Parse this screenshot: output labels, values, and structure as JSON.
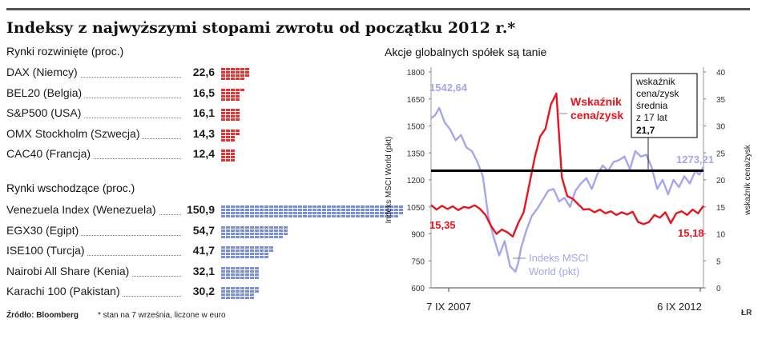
{
  "title": "Indeksy z najwyższymi stopami zwrotu od początku 2012 r.*",
  "developed": {
    "heading": "Rynki rozwinięte (proc.)",
    "color": "#e8302e",
    "rows": [
      {
        "label": "DAX (Niemcy)",
        "value": "22,6",
        "num": 22.6
      },
      {
        "label": "BEL20 (Belgia)",
        "value": "16,5",
        "num": 16.5
      },
      {
        "label": "S&P500 (USA)",
        "value": "16,1",
        "num": 16.1
      },
      {
        "label": "OMX Stockholm (Szwecja)",
        "value": "14,3",
        "num": 14.3
      },
      {
        "label": "CAC40 (Francja)",
        "value": "12,4",
        "num": 12.4
      }
    ]
  },
  "emerging": {
    "heading": "Rynki wschodzące (proc.)",
    "color": "#7a8fd6",
    "rows": [
      {
        "label": "Venezuela Index (Wenezuela)",
        "value": "150,9",
        "num": 150.9
      },
      {
        "label": "EGX30 (Egipt)",
        "value": "54,7",
        "num": 54.7
      },
      {
        "label": "ISE100 (Turcja)",
        "value": "41,7",
        "num": 41.7
      },
      {
        "label": "Nairobi All Share (Kenia)",
        "value": "32,1",
        "num": 32.1
      },
      {
        "label": "Karachi 100 (Pakistan)",
        "value": "30,2",
        "num": 30.2
      }
    ]
  },
  "footer": {
    "source": "Źródło: Bloomberg",
    "note": "* stan na 7 września, liczone w euro",
    "logo": "ŁR"
  },
  "chart_data": {
    "type": "line",
    "title": "Akcje globalnych spółek są tanie",
    "x_labels": [
      "7 IX 2007",
      "6 IX 2012"
    ],
    "y_left": {
      "label": "Indeks MSCI World (pkt)",
      "range": [
        600,
        1800
      ],
      "ticks": [
        "600",
        "750",
        "900",
        "1050",
        "1200",
        "1350",
        "1500",
        "1650",
        "1800"
      ]
    },
    "y_right": {
      "label": "wskaźnik cena/zysk",
      "range": [
        0,
        40
      ],
      "ticks": [
        "0",
        "5",
        "10",
        "15",
        "20",
        "25",
        "30",
        "35",
        "40"
      ]
    },
    "series": [
      {
        "name": "Indeks MSCI World (pkt)",
        "label_lines": [
          "Indeks MSCI",
          "World (pkt)"
        ],
        "color": "#a4a6f0",
        "axis": "left",
        "t": [
          0,
          0.015,
          0.03,
          0.05,
          0.07,
          0.09,
          0.11,
          0.13,
          0.15,
          0.17,
          0.19,
          0.21,
          0.23,
          0.25,
          0.27,
          0.29,
          0.31,
          0.32,
          0.33,
          0.35,
          0.37,
          0.39,
          0.41,
          0.43,
          0.45,
          0.47,
          0.49,
          0.51,
          0.53,
          0.55,
          0.57,
          0.59,
          0.61,
          0.63,
          0.65,
          0.67,
          0.69,
          0.71,
          0.73,
          0.75,
          0.77,
          0.79,
          0.81,
          0.83,
          0.85,
          0.87,
          0.89,
          0.91,
          0.93,
          0.95,
          0.97,
          0.985,
          1.0
        ],
        "values": [
          1542.64,
          1560,
          1600,
          1520,
          1480,
          1420,
          1450,
          1380,
          1360,
          1300,
          1220,
          1000,
          880,
          780,
          860,
          720,
          690,
          740,
          820,
          920,
          1000,
          1040,
          1090,
          1140,
          1150,
          1080,
          1100,
          1050,
          1140,
          1180,
          1210,
          1150,
          1230,
          1280,
          1250,
          1300,
          1310,
          1330,
          1260,
          1360,
          1330,
          1340,
          1270,
          1150,
          1200,
          1120,
          1200,
          1160,
          1220,
          1180,
          1250,
          1230,
          1273.21
        ],
        "start_label": "1542,64",
        "end_label": "1273,21"
      },
      {
        "name": "Wskaźnik cena/zysk",
        "label_lines": [
          "Wskaźnik",
          "cena/zysk"
        ],
        "color": "#e8141e",
        "axis": "right",
        "t": [
          0,
          0.02,
          0.04,
          0.06,
          0.08,
          0.1,
          0.12,
          0.14,
          0.16,
          0.18,
          0.2,
          0.22,
          0.24,
          0.26,
          0.28,
          0.3,
          0.32,
          0.34,
          0.36,
          0.38,
          0.39,
          0.4,
          0.42,
          0.44,
          0.46,
          0.48,
          0.5,
          0.52,
          0.54,
          0.56,
          0.58,
          0.6,
          0.62,
          0.64,
          0.66,
          0.68,
          0.7,
          0.72,
          0.74,
          0.76,
          0.78,
          0.8,
          0.82,
          0.84,
          0.86,
          0.88,
          0.9,
          0.92,
          0.94,
          0.96,
          0.98,
          1.0
        ],
        "values": [
          15.35,
          14.5,
          15.2,
          14.6,
          15.1,
          14.4,
          15.0,
          14.8,
          15.3,
          14.6,
          13.5,
          11.5,
          10.0,
          10.8,
          10.3,
          9.5,
          12.0,
          14.0,
          19.0,
          24.0,
          26.0,
          28.0,
          29.5,
          34.0,
          36.0,
          20.5,
          17.0,
          16.5,
          15.5,
          14.5,
          14.6,
          14.0,
          14.5,
          13.8,
          14.2,
          13.5,
          14.0,
          13.6,
          14.1,
          12.2,
          11.8,
          12.2,
          13.5,
          13.0,
          14.0,
          12.0,
          13.8,
          14.2,
          13.5,
          14.5,
          13.8,
          15.18
        ],
        "start_label": "15,35",
        "end_label": "15,18"
      },
      {
        "name": "wskaźnik cena/zysk średnia z 17 lat",
        "color": "#000000",
        "axis": "right",
        "value": 21.7,
        "label_lines": [
          "wskaźnik",
          "cena/zysk",
          "średnia",
          "z 17 lat"
        ],
        "value_label": "21,7"
      }
    ]
  }
}
